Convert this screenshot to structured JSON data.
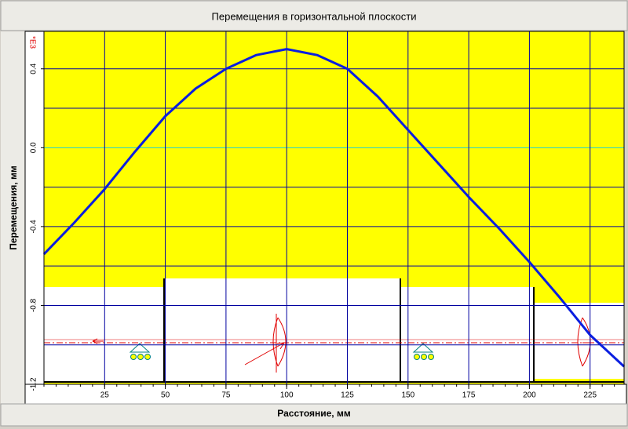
{
  "chart_data": {
    "type": "line",
    "title": "Перемещения в горизонтальной плоскости",
    "x_label": "Расстояние, мм",
    "y_label": "Перемещения, мм",
    "y_multiplier": "*E3",
    "x": [
      0,
      12.5,
      25,
      37.5,
      50,
      62.5,
      75,
      87.5,
      100,
      112.5,
      125,
      137.5,
      150,
      162.5,
      175,
      187.5,
      200,
      212.5,
      225,
      239
    ],
    "series": [
      {
        "name": "Перемещения",
        "color": "#0a1ee0",
        "values": [
          -0.54,
          -0.38,
          -0.21,
          -0.02,
          0.16,
          0.3,
          0.4,
          0.47,
          0.5,
          0.47,
          0.4,
          0.26,
          0.09,
          -0.08,
          -0.25,
          -0.41,
          -0.58,
          -0.76,
          -0.95,
          -1.11
        ]
      }
    ],
    "xlim": [
      0,
      239
    ],
    "ylim": [
      -1.2,
      0.59
    ],
    "xticks": [
      25,
      50,
      75,
      100,
      125,
      150,
      175,
      200,
      225
    ],
    "yticks": [
      0.4,
      {
        "value": 0,
        "label": "0.0"
      },
      -0.4,
      -0.8,
      -1.2
    ],
    "y_minor_grid": [
      0.2,
      -0.2,
      -0.6,
      -1.0
    ],
    "x_minor_tick_step": 5,
    "grid": true,
    "grid_color": "#0000a0",
    "zero_line_color": "#20d0d0",
    "background": "#ffff00"
  }
}
